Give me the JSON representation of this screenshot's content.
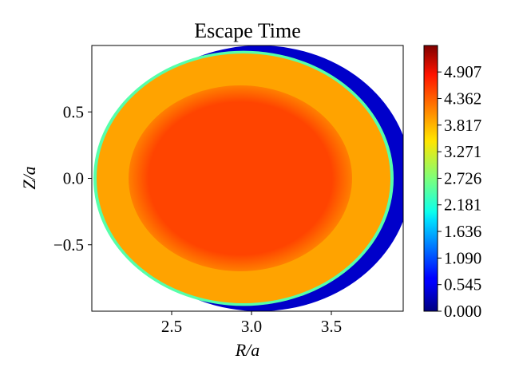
{
  "chart_data": {
    "type": "heatmap",
    "title": "Escape Time",
    "xlabel": "R/a",
    "ylabel": "Z/a",
    "xlim": [
      2.0,
      3.95
    ],
    "ylim": [
      -1.0,
      1.0
    ],
    "xticks": [
      {
        "value": 2.5,
        "label": "2.5"
      },
      {
        "value": 3.0,
        "label": "3.0"
      },
      {
        "value": 3.5,
        "label": "3.5"
      }
    ],
    "yticks": [
      {
        "value": 0.5,
        "label": "0.5"
      },
      {
        "value": 0.0,
        "label": "0.0"
      },
      {
        "value": -0.5,
        "label": "−0.5"
      }
    ],
    "colormap": "jet",
    "colorbar": {
      "min": 0.0,
      "max": 5.45,
      "ticks": [
        {
          "value": 0.0,
          "label": "0.000"
        },
        {
          "value": 0.545,
          "label": "0.545"
        },
        {
          "value": 1.09,
          "label": "1.090"
        },
        {
          "value": 1.636,
          "label": "1.636"
        },
        {
          "value": 2.181,
          "label": "2.181"
        },
        {
          "value": 2.726,
          "label": "2.726"
        },
        {
          "value": 3.271,
          "label": "3.271"
        },
        {
          "value": 3.817,
          "label": "3.817"
        },
        {
          "value": 4.362,
          "label": "4.362"
        },
        {
          "value": 4.907,
          "label": "4.907"
        }
      ]
    },
    "regions": [
      {
        "name": "outer edge",
        "center": [
          3.05,
          0.0
        ],
        "radius_r": 0.95,
        "radius_z": 1.0,
        "value": 0.4
      },
      {
        "name": "boundary ring",
        "center": [
          2.95,
          0.0
        ],
        "radius_r": 0.94,
        "radius_z": 0.96,
        "value": 2.5
      },
      {
        "name": "annulus",
        "center": [
          2.95,
          0.0
        ],
        "radius_r": 0.92,
        "radius_z": 0.94,
        "value": 3.9
      },
      {
        "name": "core",
        "center": [
          2.93,
          0.0
        ],
        "radius_r": 0.7,
        "radius_z": 0.7,
        "value": 4.65
      }
    ]
  }
}
